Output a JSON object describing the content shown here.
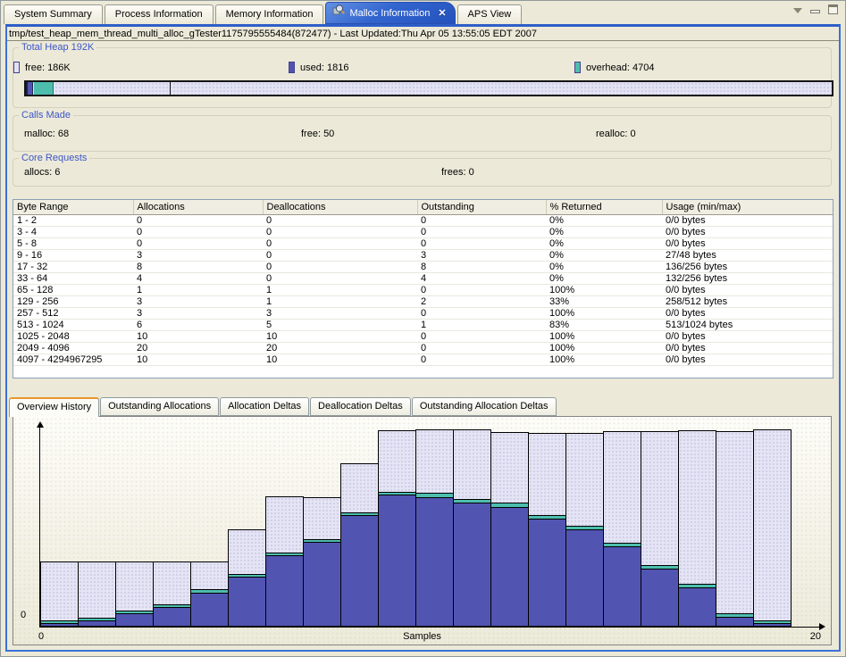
{
  "top_tabs": [
    {
      "label": "System Summary",
      "active": false
    },
    {
      "label": "Process Information",
      "active": false
    },
    {
      "label": "Memory Information",
      "active": false
    },
    {
      "label": "Malloc Information",
      "active": true,
      "closable": true,
      "icon": "malloc-information-icon"
    },
    {
      "label": "APS View",
      "active": false
    }
  ],
  "window_controls": [
    {
      "name": "view-menu-icon"
    },
    {
      "name": "minimize-icon"
    },
    {
      "name": "maximize-icon"
    }
  ],
  "info_bar": "tmp/test_heap_mem_thread_multi_alloc_gTester1175795555484(872477)  - Last Updated:Thu Apr 05 13:55:05 EDT 2007",
  "total_heap": {
    "title": "Total Heap 192K",
    "legend": [
      {
        "label": "used:  1816",
        "color": "#5254b2"
      },
      {
        "label": "overhead:  4704",
        "color": "#4dbeae"
      },
      {
        "label": "free:  186K",
        "color": "#e2e2f4"
      }
    ]
  },
  "calls_made": {
    "title": "Calls Made",
    "items": [
      "malloc:  68",
      "free:  50",
      "realloc:  0"
    ]
  },
  "core_requests": {
    "title": "Core Requests",
    "items": [
      "allocs:  6",
      "frees:  0"
    ]
  },
  "table": {
    "columns": [
      "Byte Range",
      "Allocations",
      "Deallocations",
      "Outstanding",
      "% Returned",
      "Usage (min/max)"
    ],
    "rows": [
      [
        "1 - 2",
        "0",
        "0",
        "0",
        "0%",
        "0/0 bytes"
      ],
      [
        "3 - 4",
        "0",
        "0",
        "0",
        "0%",
        "0/0 bytes"
      ],
      [
        "5 - 8",
        "0",
        "0",
        "0",
        "0%",
        "0/0 bytes"
      ],
      [
        "9 - 16",
        "3",
        "0",
        "3",
        "0%",
        "27/48 bytes"
      ],
      [
        "17 - 32",
        "8",
        "0",
        "8",
        "0%",
        "136/256 bytes"
      ],
      [
        "33 - 64",
        "4",
        "0",
        "4",
        "0%",
        "132/256 bytes"
      ],
      [
        "65 - 128",
        "1",
        "1",
        "0",
        "100%",
        "0/0 bytes"
      ],
      [
        "129 - 256",
        "3",
        "1",
        "2",
        "33%",
        "258/512 bytes"
      ],
      [
        "257 - 512",
        "3",
        "3",
        "0",
        "100%",
        "0/0 bytes"
      ],
      [
        "513 - 1024",
        "6",
        "5",
        "1",
        "83%",
        "513/1024 bytes"
      ],
      [
        "1025 - 2048",
        "10",
        "10",
        "0",
        "100%",
        "0/0 bytes"
      ],
      [
        "2049 - 4096",
        "20",
        "20",
        "0",
        "100%",
        "0/0 bytes"
      ],
      [
        "4097 - 4294967295",
        "10",
        "10",
        "0",
        "100%",
        "0/0 bytes"
      ]
    ]
  },
  "bottom_tabs": [
    {
      "label": "Overview History",
      "active": true
    },
    {
      "label": "Outstanding Allocations",
      "active": false
    },
    {
      "label": "Allocation Deltas",
      "active": false
    },
    {
      "label": "Deallocation Deltas",
      "active": false
    },
    {
      "label": "Outstanding Allocation Deltas",
      "active": false
    }
  ],
  "chart_data": {
    "type": "bar",
    "stacked": true,
    "title": "Overview History",
    "xlabel": "Samples",
    "x_range": [
      0,
      20
    ],
    "x_axis_labels": [
      "0",
      "20"
    ],
    "y_origin_label": "0",
    "units": "relative pixel heights (no y-axis scale shown)",
    "legend": [
      "used",
      "overhead",
      "free"
    ],
    "colors": {
      "used": "#5254b2",
      "overhead": "#4dbeae",
      "free": "#e4e4f5"
    },
    "series": [
      {
        "name": "used",
        "values": [
          2,
          5,
          13,
          20,
          36,
          54,
          78,
          93,
          123,
          146,
          143,
          137,
          132,
          119,
          107,
          88,
          63,
          42,
          9,
          2
        ]
      },
      {
        "name": "overhead",
        "values": [
          4,
          4,
          4,
          4,
          5,
          4,
          4,
          4,
          4,
          4,
          6,
          5,
          6,
          5,
          5,
          5,
          5,
          5,
          5,
          4
        ]
      },
      {
        "name": "free",
        "values": [
          65,
          62,
          54,
          47,
          30,
          49,
          62,
          46,
          54,
          68,
          70,
          77,
          78,
          91,
          103,
          124,
          149,
          171,
          203,
          213
        ]
      }
    ]
  }
}
